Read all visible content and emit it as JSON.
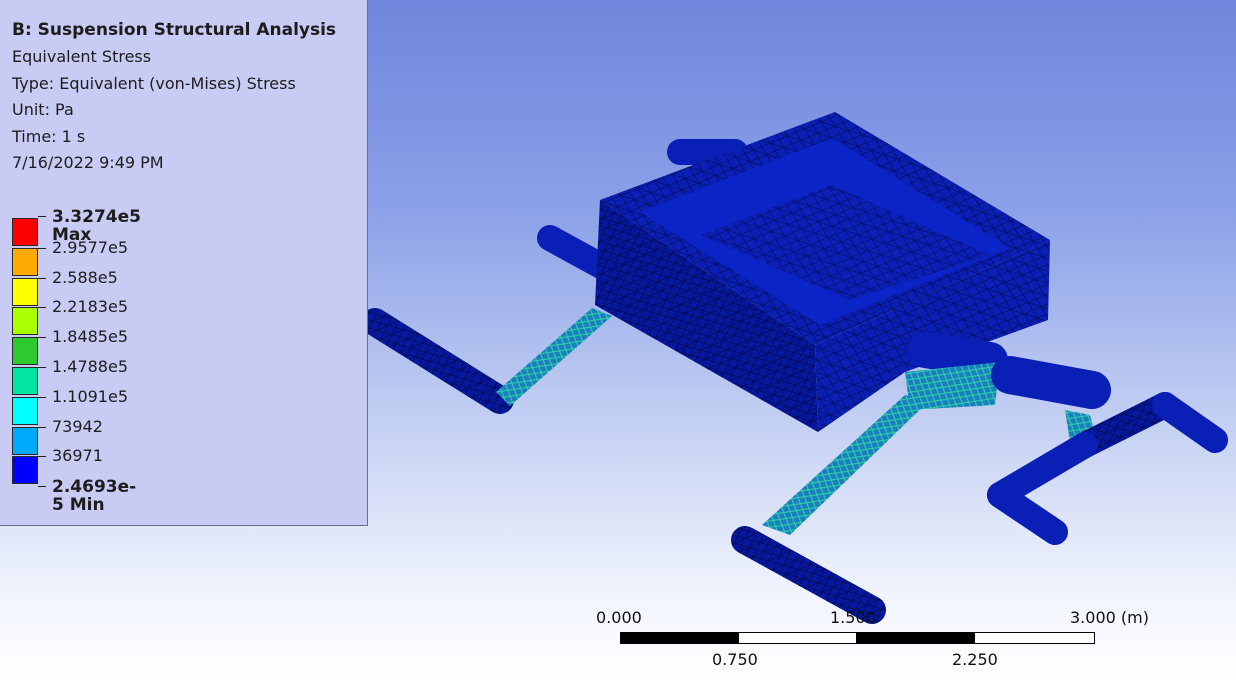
{
  "legend": {
    "title": "B: Suspension Structural Analysis",
    "result_name": "Equivalent Stress",
    "type": "Type: Equivalent (von-Mises) Stress",
    "unit": "Unit: Pa",
    "time": "Time: 1 s",
    "date": "7/16/2022 9:49 PM",
    "max_label": "3.3274e5 Max",
    "min_label": "2.4693e-5 Min",
    "levels": [
      "2.9577e5",
      "2.588e5",
      "2.2183e5",
      "1.8485e5",
      "1.4788e5",
      "1.1091e5",
      "73942",
      "36971"
    ],
    "colors": [
      "#ff0000",
      "#ffaa00",
      "#ffff00",
      "#aaff00",
      "#2ec92e",
      "#00e6a0",
      "#00ffff",
      "#00aaff",
      "#0000ff"
    ]
  },
  "scale_bar": {
    "top_labels": [
      "0.000",
      "1.500",
      "3.000 (m)"
    ],
    "bottom_labels": [
      "0.750",
      "2.250"
    ]
  },
  "model": {
    "mesh_color": "#0a1fb5"
  }
}
